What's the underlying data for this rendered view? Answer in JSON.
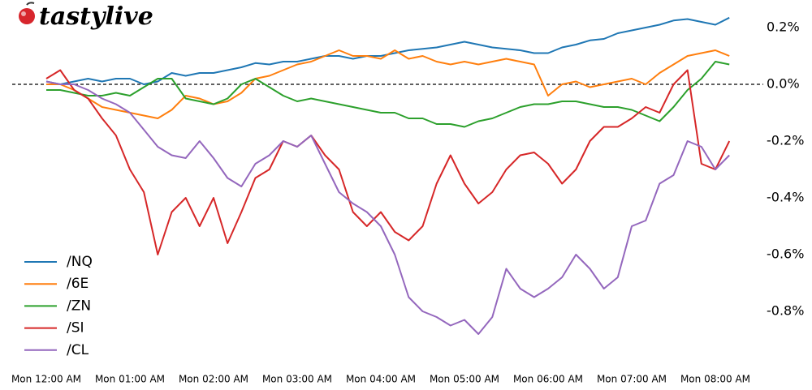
{
  "logo": "tastylive",
  "chart_data": {
    "type": "line",
    "x": [
      "Mon 12:00 AM",
      "Mon 12:10 AM",
      "Mon 12:20 AM",
      "Mon 12:30 AM",
      "Mon 12:40 AM",
      "Mon 12:50 AM",
      "Mon 01:00 AM",
      "Mon 01:10 AM",
      "Mon 01:20 AM",
      "Mon 01:30 AM",
      "Mon 01:40 AM",
      "Mon 01:50 AM",
      "Mon 02:00 AM",
      "Mon 02:10 AM",
      "Mon 02:20 AM",
      "Mon 02:30 AM",
      "Mon 02:40 AM",
      "Mon 02:50 AM",
      "Mon 03:00 AM",
      "Mon 03:10 AM",
      "Mon 03:20 AM",
      "Mon 03:30 AM",
      "Mon 03:40 AM",
      "Mon 03:50 AM",
      "Mon 04:00 AM",
      "Mon 04:10 AM",
      "Mon 04:20 AM",
      "Mon 04:30 AM",
      "Mon 04:40 AM",
      "Mon 04:50 AM",
      "Mon 05:00 AM",
      "Mon 05:10 AM",
      "Mon 05:20 AM",
      "Mon 05:30 AM",
      "Mon 05:40 AM",
      "Mon 05:50 AM",
      "Mon 06:00 AM",
      "Mon 06:10 AM",
      "Mon 06:20 AM",
      "Mon 06:30 AM",
      "Mon 06:40 AM",
      "Mon 06:50 AM",
      "Mon 07:00 AM",
      "Mon 07:10 AM",
      "Mon 07:20 AM",
      "Mon 07:30 AM",
      "Mon 07:40 AM",
      "Mon 07:50 AM",
      "Mon 08:00 AM",
      "Mon 08:10 AM"
    ],
    "xticks": [
      "Mon 12:00 AM",
      "Mon 01:00 AM",
      "Mon 02:00 AM",
      "Mon 03:00 AM",
      "Mon 04:00 AM",
      "Mon 05:00 AM",
      "Mon 06:00 AM",
      "Mon 07:00 AM",
      "Mon 08:00 AM"
    ],
    "ylim": [
      -0.96,
      0.26
    ],
    "yticks": [
      {
        "value": 0.2,
        "label": "0.2%"
      },
      {
        "value": 0.0,
        "label": "0.0%"
      },
      {
        "value": -0.2,
        "label": "-0.2%"
      },
      {
        "value": -0.4,
        "label": "-0.4%"
      },
      {
        "value": -0.6,
        "label": "-0.6%"
      },
      {
        "value": -0.8,
        "label": "-0.8%"
      }
    ],
    "zero_line": true,
    "legend": "lower left",
    "series": [
      {
        "name": "/NQ",
        "color": "#1f77b4",
        "values": [
          0.01,
          0.0,
          0.01,
          0.02,
          0.01,
          0.02,
          0.02,
          0.0,
          0.01,
          0.04,
          0.03,
          0.04,
          0.04,
          0.05,
          0.06,
          0.075,
          0.07,
          0.08,
          0.08,
          0.09,
          0.1,
          0.1,
          0.09,
          0.1,
          0.1,
          0.11,
          0.12,
          0.125,
          0.13,
          0.14,
          0.15,
          0.14,
          0.13,
          0.125,
          0.12,
          0.11,
          0.11,
          0.13,
          0.14,
          0.155,
          0.16,
          0.18,
          0.19,
          0.2,
          0.21,
          0.225,
          0.23,
          0.22,
          0.21,
          0.235
        ]
      },
      {
        "name": "/6E",
        "color": "#ff7f0e",
        "values": [
          0.0,
          0.0,
          -0.02,
          -0.05,
          -0.08,
          -0.09,
          -0.1,
          -0.11,
          -0.12,
          -0.09,
          -0.04,
          -0.05,
          -0.07,
          -0.06,
          -0.03,
          0.02,
          0.03,
          0.05,
          0.07,
          0.08,
          0.1,
          0.12,
          0.1,
          0.1,
          0.09,
          0.12,
          0.09,
          0.1,
          0.08,
          0.07,
          0.08,
          0.07,
          0.08,
          0.09,
          0.08,
          0.07,
          -0.04,
          0.0,
          0.01,
          -0.01,
          0.0,
          0.01,
          0.02,
          0.0,
          0.04,
          0.07,
          0.1,
          0.11,
          0.12,
          0.1
        ]
      },
      {
        "name": "/ZN",
        "color": "#2ca02c",
        "values": [
          -0.02,
          -0.02,
          -0.03,
          -0.04,
          -0.04,
          -0.03,
          -0.04,
          -0.01,
          0.02,
          0.02,
          -0.05,
          -0.06,
          -0.07,
          -0.05,
          0.0,
          0.02,
          -0.01,
          -0.04,
          -0.06,
          -0.05,
          -0.06,
          -0.07,
          -0.08,
          -0.09,
          -0.1,
          -0.1,
          -0.12,
          -0.12,
          -0.14,
          -0.14,
          -0.15,
          -0.13,
          -0.12,
          -0.1,
          -0.08,
          -0.07,
          -0.07,
          -0.06,
          -0.06,
          -0.07,
          -0.08,
          -0.08,
          -0.09,
          -0.11,
          -0.13,
          -0.08,
          -0.02,
          0.02,
          0.08,
          0.07
        ]
      },
      {
        "name": "/SI",
        "color": "#d62728",
        "values": [
          0.02,
          0.05,
          -0.02,
          -0.05,
          -0.12,
          -0.18,
          -0.3,
          -0.38,
          -0.6,
          -0.45,
          -0.4,
          -0.5,
          -0.4,
          -0.56,
          -0.45,
          -0.33,
          -0.3,
          -0.2,
          -0.22,
          -0.18,
          -0.25,
          -0.3,
          -0.45,
          -0.5,
          -0.45,
          -0.52,
          -0.55,
          -0.5,
          -0.35,
          -0.25,
          -0.35,
          -0.42,
          -0.38,
          -0.3,
          -0.25,
          -0.24,
          -0.28,
          -0.35,
          -0.3,
          -0.2,
          -0.15,
          -0.15,
          -0.12,
          -0.08,
          -0.1,
          0.0,
          0.05,
          -0.28,
          -0.3,
          -0.2
        ]
      },
      {
        "name": "/CL",
        "color": "#9467bd",
        "values": [
          0.01,
          0.0,
          0.0,
          -0.02,
          -0.05,
          -0.07,
          -0.1,
          -0.16,
          -0.22,
          -0.25,
          -0.26,
          -0.2,
          -0.26,
          -0.33,
          -0.36,
          -0.28,
          -0.25,
          -0.2,
          -0.22,
          -0.18,
          -0.28,
          -0.38,
          -0.42,
          -0.45,
          -0.5,
          -0.6,
          -0.75,
          -0.8,
          -0.82,
          -0.85,
          -0.83,
          -0.88,
          -0.82,
          -0.65,
          -0.72,
          -0.75,
          -0.72,
          -0.68,
          -0.6,
          -0.65,
          -0.72,
          -0.68,
          -0.5,
          -0.48,
          -0.35,
          -0.32,
          -0.2,
          -0.22,
          -0.3,
          -0.25
        ]
      }
    ]
  }
}
